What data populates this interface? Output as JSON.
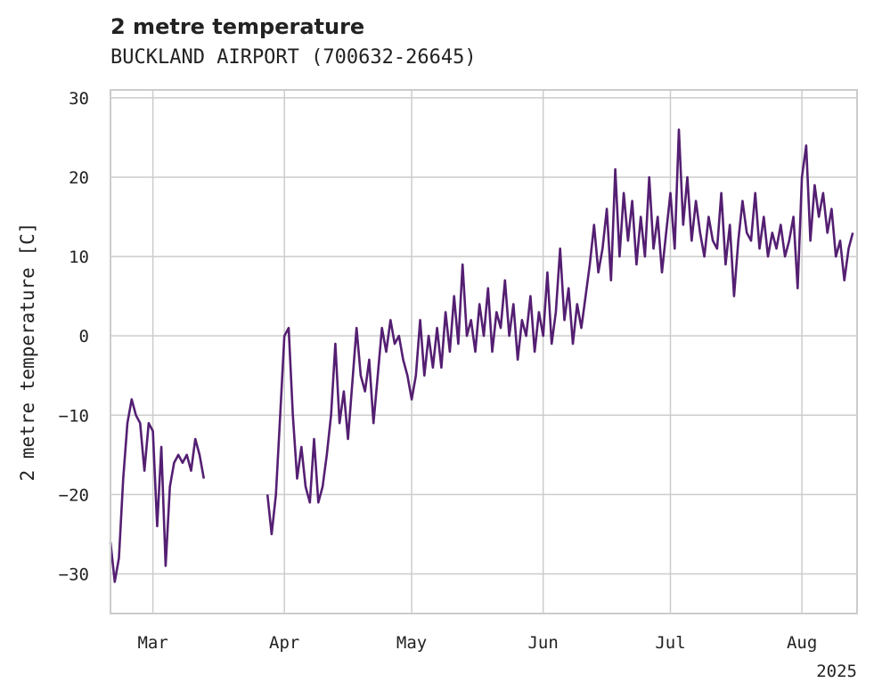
{
  "chart_data": {
    "type": "line",
    "title": "2 metre temperature",
    "subtitle": "BUCKLAND AIRPORT (700632-26645)",
    "ylabel": "2 metre temperature [C]",
    "xlabel": "",
    "x_range": [
      "2025-02-19",
      "2025-08-14"
    ],
    "ylim": [
      -35,
      31
    ],
    "x_ticks": [
      {
        "date": "2025-03-01",
        "label": "Mar"
      },
      {
        "date": "2025-04-01",
        "label": "Apr"
      },
      {
        "date": "2025-05-01",
        "label": "May"
      },
      {
        "date": "2025-06-01",
        "label": "Jun"
      },
      {
        "date": "2025-07-01",
        "label": "Jul"
      },
      {
        "date": "2025-08-01",
        "label": "Aug"
      }
    ],
    "x_offset_label": "2025",
    "y_ticks": [
      30,
      20,
      10,
      0,
      -10,
      -20,
      -30
    ],
    "y_tick_labels": [
      "30",
      "20",
      "10",
      "0",
      "−10",
      "−20",
      "−30"
    ],
    "grid": true,
    "line_color": "#541f72",
    "grid_color": "#cccccc",
    "series": [
      {
        "name": "",
        "points": [
          [
            "2025-02-19",
            -26
          ],
          [
            "2025-02-20",
            -31
          ],
          [
            "2025-02-21",
            -28
          ],
          [
            "2025-02-22",
            -18
          ],
          [
            "2025-02-23",
            -11
          ],
          [
            "2025-02-24",
            -8
          ],
          [
            "2025-02-25",
            -10
          ],
          [
            "2025-02-26",
            -11
          ],
          [
            "2025-02-27",
            -17
          ],
          [
            "2025-02-28",
            -11
          ],
          [
            "2025-03-01",
            -12
          ],
          [
            "2025-03-02",
            -24
          ],
          [
            "2025-03-03",
            -14
          ],
          [
            "2025-03-04",
            -29
          ],
          [
            "2025-03-05",
            -19
          ],
          [
            "2025-03-06",
            -16
          ],
          [
            "2025-03-07",
            -15
          ],
          [
            "2025-03-08",
            -16
          ],
          [
            "2025-03-09",
            -15
          ],
          [
            "2025-03-10",
            -17
          ],
          [
            "2025-03-11",
            -13
          ],
          [
            "2025-03-12",
            -15
          ],
          [
            "2025-03-13",
            -18
          ],
          null,
          [
            "2025-03-28",
            -20
          ],
          [
            "2025-03-29",
            -25
          ],
          [
            "2025-03-30",
            -20
          ],
          [
            "2025-03-31",
            -10
          ],
          [
            "2025-04-01",
            0
          ],
          [
            "2025-04-02",
            1
          ],
          [
            "2025-04-03",
            -10
          ],
          [
            "2025-04-04",
            -18
          ],
          [
            "2025-04-05",
            -14
          ],
          [
            "2025-04-06",
            -19
          ],
          [
            "2025-04-07",
            -21
          ],
          [
            "2025-04-08",
            -13
          ],
          [
            "2025-04-09",
            -21
          ],
          [
            "2025-04-10",
            -19
          ],
          [
            "2025-04-11",
            -15
          ],
          [
            "2025-04-12",
            -10
          ],
          [
            "2025-04-13",
            -1
          ],
          [
            "2025-04-14",
            -11
          ],
          [
            "2025-04-15",
            -7
          ],
          [
            "2025-04-16",
            -13
          ],
          [
            "2025-04-17",
            -6
          ],
          [
            "2025-04-18",
            1
          ],
          [
            "2025-04-19",
            -5
          ],
          [
            "2025-04-20",
            -7
          ],
          [
            "2025-04-21",
            -3
          ],
          [
            "2025-04-22",
            -11
          ],
          [
            "2025-04-23",
            -5
          ],
          [
            "2025-04-24",
            1
          ],
          [
            "2025-04-25",
            -2
          ],
          [
            "2025-04-26",
            2
          ],
          [
            "2025-04-27",
            -1
          ],
          [
            "2025-04-28",
            0
          ],
          [
            "2025-04-29",
            -3
          ],
          [
            "2025-04-30",
            -5
          ],
          [
            "2025-05-01",
            -8
          ],
          [
            "2025-05-02",
            -5
          ],
          [
            "2025-05-03",
            2
          ],
          [
            "2025-05-04",
            -5
          ],
          [
            "2025-05-05",
            0
          ],
          [
            "2025-05-06",
            -4
          ],
          [
            "2025-05-07",
            1
          ],
          [
            "2025-05-08",
            -4
          ],
          [
            "2025-05-09",
            3
          ],
          [
            "2025-05-10",
            -2
          ],
          [
            "2025-05-11",
            5
          ],
          [
            "2025-05-12",
            -1
          ],
          [
            "2025-05-13",
            9
          ],
          [
            "2025-05-14",
            0
          ],
          [
            "2025-05-15",
            2
          ],
          [
            "2025-05-16",
            -2
          ],
          [
            "2025-05-17",
            4
          ],
          [
            "2025-05-18",
            0
          ],
          [
            "2025-05-19",
            6
          ],
          [
            "2025-05-20",
            -2
          ],
          [
            "2025-05-21",
            3
          ],
          [
            "2025-05-22",
            1
          ],
          [
            "2025-05-23",
            7
          ],
          [
            "2025-05-24",
            0
          ],
          [
            "2025-05-25",
            4
          ],
          [
            "2025-05-26",
            -3
          ],
          [
            "2025-05-27",
            2
          ],
          [
            "2025-05-28",
            0
          ],
          [
            "2025-05-29",
            5
          ],
          [
            "2025-05-30",
            -2
          ],
          [
            "2025-05-31",
            3
          ],
          [
            "2025-06-01",
            0
          ],
          [
            "2025-06-02",
            8
          ],
          [
            "2025-06-03",
            -1
          ],
          [
            "2025-06-04",
            3
          ],
          [
            "2025-06-05",
            11
          ],
          [
            "2025-06-06",
            2
          ],
          [
            "2025-06-07",
            6
          ],
          [
            "2025-06-08",
            -1
          ],
          [
            "2025-06-09",
            4
          ],
          [
            "2025-06-10",
            1
          ],
          [
            "2025-06-11",
            5
          ],
          [
            "2025-06-12",
            9
          ],
          [
            "2025-06-13",
            14
          ],
          [
            "2025-06-14",
            8
          ],
          [
            "2025-06-15",
            11
          ],
          [
            "2025-06-16",
            16
          ],
          [
            "2025-06-17",
            7
          ],
          [
            "2025-06-18",
            21
          ],
          [
            "2025-06-19",
            10
          ],
          [
            "2025-06-20",
            18
          ],
          [
            "2025-06-21",
            12
          ],
          [
            "2025-06-22",
            17
          ],
          [
            "2025-06-23",
            9
          ],
          [
            "2025-06-24",
            15
          ],
          [
            "2025-06-25",
            10
          ],
          [
            "2025-06-26",
            20
          ],
          [
            "2025-06-27",
            11
          ],
          [
            "2025-06-28",
            15
          ],
          [
            "2025-06-29",
            8
          ],
          [
            "2025-06-30",
            13
          ],
          [
            "2025-07-01",
            18
          ],
          [
            "2025-07-02",
            11
          ],
          [
            "2025-07-03",
            26
          ],
          [
            "2025-07-04",
            14
          ],
          [
            "2025-07-05",
            20
          ],
          [
            "2025-07-06",
            12
          ],
          [
            "2025-07-07",
            17
          ],
          [
            "2025-07-08",
            13
          ],
          [
            "2025-07-09",
            10
          ],
          [
            "2025-07-10",
            15
          ],
          [
            "2025-07-11",
            12
          ],
          [
            "2025-07-12",
            11
          ],
          [
            "2025-07-13",
            18
          ],
          [
            "2025-07-14",
            9
          ],
          [
            "2025-07-15",
            14
          ],
          [
            "2025-07-16",
            5
          ],
          [
            "2025-07-17",
            12
          ],
          [
            "2025-07-18",
            17
          ],
          [
            "2025-07-19",
            13
          ],
          [
            "2025-07-20",
            12
          ],
          [
            "2025-07-21",
            18
          ],
          [
            "2025-07-22",
            11
          ],
          [
            "2025-07-23",
            15
          ],
          [
            "2025-07-24",
            10
          ],
          [
            "2025-07-25",
            13
          ],
          [
            "2025-07-26",
            11
          ],
          [
            "2025-07-27",
            14
          ],
          [
            "2025-07-28",
            10
          ],
          [
            "2025-07-29",
            12
          ],
          [
            "2025-07-30",
            15
          ],
          [
            "2025-07-31",
            6
          ],
          [
            "2025-08-01",
            20
          ],
          [
            "2025-08-02",
            24
          ],
          [
            "2025-08-03",
            12
          ],
          [
            "2025-08-04",
            19
          ],
          [
            "2025-08-05",
            15
          ],
          [
            "2025-08-06",
            18
          ],
          [
            "2025-08-07",
            13
          ],
          [
            "2025-08-08",
            16
          ],
          [
            "2025-08-09",
            10
          ],
          [
            "2025-08-10",
            12
          ],
          [
            "2025-08-11",
            7
          ],
          [
            "2025-08-12",
            11
          ],
          [
            "2025-08-13",
            13
          ]
        ]
      }
    ]
  }
}
